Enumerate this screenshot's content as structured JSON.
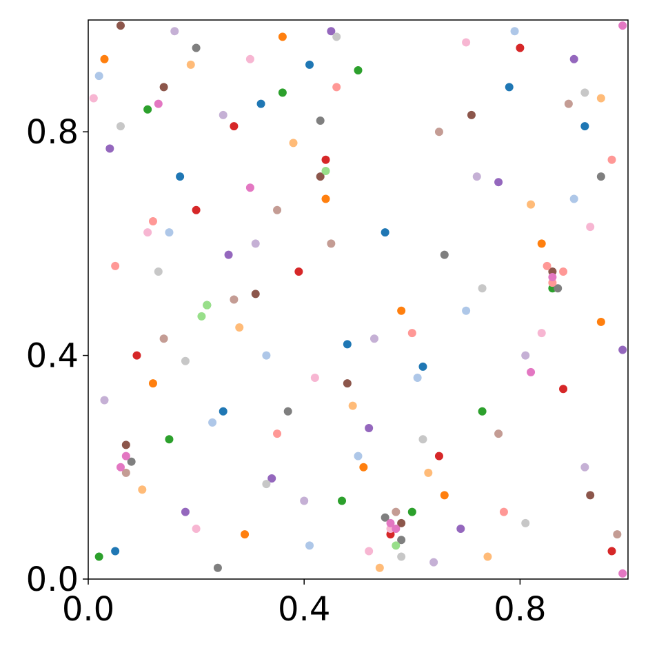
{
  "chart_data": {
    "type": "scatter",
    "xlim": [
      0,
      1
    ],
    "ylim": [
      0,
      1
    ],
    "xticks": [
      {
        "value": 0,
        "label": "0.0"
      },
      0.4,
      0.8
    ],
    "yticks": [
      {
        "value": 0,
        "label": "0.0"
      },
      0.4,
      0.8
    ],
    "series": [
      {
        "color": "#1f77b4",
        "x": [
          0.05,
          0.17,
          0.32,
          0.41,
          0.55,
          0.62,
          0.78,
          0.92,
          0.48,
          0.25
        ],
        "y": [
          0.05,
          0.72,
          0.85,
          0.92,
          0.62,
          0.38,
          0.88,
          0.81,
          0.42,
          0.3
        ]
      },
      {
        "color": "#ff7f0e",
        "x": [
          0.03,
          0.12,
          0.36,
          0.44,
          0.51,
          0.66,
          0.84,
          0.95,
          0.29,
          0.58
        ],
        "y": [
          0.93,
          0.35,
          0.97,
          0.68,
          0.2,
          0.15,
          0.6,
          0.46,
          0.08,
          0.48
        ]
      },
      {
        "color": "#2ca02c",
        "x": [
          0.11,
          0.22,
          0.47,
          0.6,
          0.86,
          0.02,
          0.36,
          0.73,
          0.15,
          0.5
        ],
        "y": [
          0.84,
          0.49,
          0.14,
          0.12,
          0.52,
          0.04,
          0.87,
          0.3,
          0.25,
          0.91
        ]
      },
      {
        "color": "#d62728",
        "x": [
          0.09,
          0.27,
          0.44,
          0.56,
          0.8,
          0.97,
          0.2,
          0.65,
          0.39,
          0.88
        ],
        "y": [
          0.4,
          0.81,
          0.75,
          0.08,
          0.95,
          0.05,
          0.66,
          0.22,
          0.55,
          0.34
        ]
      },
      {
        "color": "#9467bd",
        "x": [
          0.04,
          0.18,
          0.34,
          0.52,
          0.69,
          0.9,
          0.99,
          0.45,
          0.76,
          0.26
        ],
        "y": [
          0.77,
          0.12,
          0.18,
          0.27,
          0.09,
          0.93,
          0.41,
          0.98,
          0.71,
          0.58
        ]
      },
      {
        "color": "#8c564b",
        "x": [
          0.07,
          0.14,
          0.43,
          0.58,
          0.86,
          0.31,
          0.71,
          0.93,
          0.06,
          0.48
        ],
        "y": [
          0.24,
          0.88,
          0.72,
          0.1,
          0.55,
          0.51,
          0.83,
          0.15,
          0.99,
          0.35
        ]
      },
      {
        "color": "#7f7f7f",
        "x": [
          0.08,
          0.58,
          0.55,
          0.87,
          0.2,
          0.43,
          0.66,
          0.37,
          0.95,
          0.24
        ],
        "y": [
          0.21,
          0.07,
          0.11,
          0.52,
          0.95,
          0.82,
          0.58,
          0.3,
          0.72,
          0.02
        ]
      },
      {
        "color": "#aec7e8",
        "x": [
          0.02,
          0.23,
          0.41,
          0.61,
          0.79,
          0.15,
          0.5,
          0.9,
          0.33,
          0.7
        ],
        "y": [
          0.9,
          0.28,
          0.06,
          0.36,
          0.98,
          0.62,
          0.22,
          0.68,
          0.4,
          0.48
        ]
      },
      {
        "color": "#ffbb78",
        "x": [
          0.19,
          0.38,
          0.49,
          0.63,
          0.82,
          0.1,
          0.28,
          0.74,
          0.95,
          0.54
        ],
        "y": [
          0.92,
          0.78,
          0.31,
          0.19,
          0.67,
          0.16,
          0.45,
          0.04,
          0.86,
          0.02
        ]
      },
      {
        "color": "#98df8a",
        "x": [
          0.22,
          0.44,
          0.21,
          0.57
        ],
        "y": [
          0.49,
          0.73,
          0.47,
          0.06
        ]
      },
      {
        "color": "#ff9896",
        "x": [
          0.86,
          0.85,
          0.88,
          0.12,
          0.35,
          0.6,
          0.77,
          0.05,
          0.46,
          0.97
        ],
        "y": [
          0.53,
          0.56,
          0.55,
          0.64,
          0.26,
          0.44,
          0.12,
          0.56,
          0.88,
          0.75
        ]
      },
      {
        "color": "#c5b0d5",
        "x": [
          0.16,
          0.31,
          0.53,
          0.72,
          0.92,
          0.03,
          0.4,
          0.81,
          0.64,
          0.25
        ],
        "y": [
          0.98,
          0.6,
          0.43,
          0.72,
          0.2,
          0.32,
          0.14,
          0.4,
          0.03,
          0.83
        ]
      },
      {
        "color": "#c49c94",
        "x": [
          0.07,
          0.27,
          0.45,
          0.57,
          0.76,
          0.14,
          0.89,
          0.35,
          0.65,
          0.98
        ],
        "y": [
          0.19,
          0.5,
          0.6,
          0.12,
          0.26,
          0.43,
          0.85,
          0.66,
          0.8,
          0.08
        ]
      },
      {
        "color": "#f7b6d2",
        "x": [
          0.11,
          0.3,
          0.52,
          0.56,
          0.84,
          0.01,
          0.42,
          0.7,
          0.2,
          0.93
        ],
        "y": [
          0.62,
          0.93,
          0.05,
          0.09,
          0.44,
          0.86,
          0.36,
          0.96,
          0.09,
          0.63
        ]
      },
      {
        "color": "#c7c7c7",
        "x": [
          0.06,
          0.18,
          0.46,
          0.58,
          0.73,
          0.92,
          0.33,
          0.62,
          0.13,
          0.81
        ],
        "y": [
          0.81,
          0.39,
          0.97,
          0.04,
          0.52,
          0.87,
          0.17,
          0.25,
          0.55,
          0.1
        ]
      },
      {
        "color": "#e377c2",
        "x": [
          0.13,
          0.86,
          0.07,
          0.57,
          0.99,
          0.99,
          0.06,
          0.56,
          0.3,
          0.82
        ],
        "y": [
          0.85,
          0.54,
          0.22,
          0.09,
          0.99,
          0.01,
          0.2,
          0.1,
          0.7,
          0.37
        ]
      }
    ]
  }
}
